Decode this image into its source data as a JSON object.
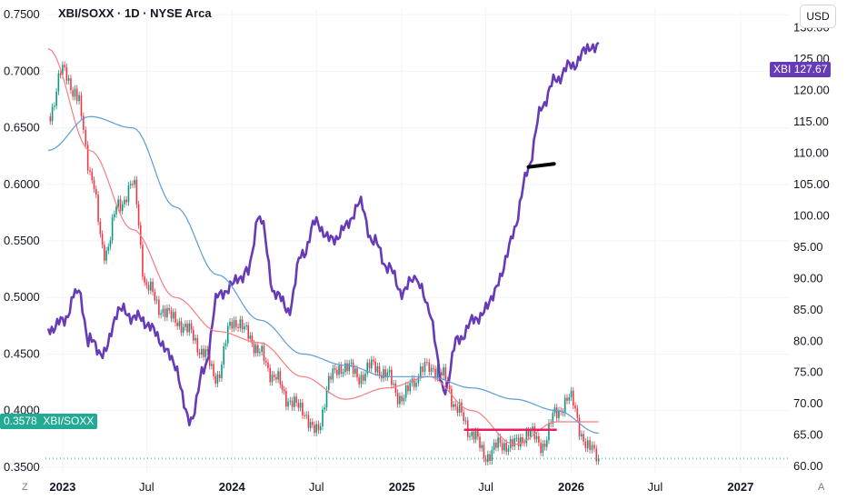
{
  "header": {
    "title": "XBI/SOXX · 1D · NYSE Arca",
    "currency_button": "USD"
  },
  "badges": {
    "ratio_value": "0.3578",
    "ratio_symbol": "XBI/SOXX",
    "xbi_symbol": "XBI",
    "xbi_value": "127.67"
  },
  "corner_marks": {
    "left": "Z",
    "right": "A"
  },
  "colors": {
    "xbi_line": "#673ab7",
    "candle_up": "#089981",
    "candle_down": "#f23645",
    "ma_fast": "#f77c80",
    "ma_slow": "#5b9cd6",
    "ratio_line": "#22ab94",
    "support_line": "#e91e63",
    "trend_mark": "#000000"
  },
  "chart_data": {
    "type": "line",
    "left_axis": {
      "ticks": [
        0.75,
        0.7,
        0.65,
        0.6,
        0.55,
        0.5,
        0.45,
        0.4,
        0.35
      ],
      "tick_labels": [
        "0.7500",
        "0.7000",
        "0.6500",
        "0.6000",
        "0.5500",
        "0.5000",
        "0.4500",
        "0.4000",
        "0.3500"
      ],
      "range": [
        0.345,
        0.755
      ]
    },
    "right_axis": {
      "ticks": [
        130,
        125,
        120,
        115,
        110,
        105,
        100,
        95,
        90,
        85,
        80,
        75,
        70,
        65,
        60
      ],
      "tick_labels": [
        "130.00",
        "125.00",
        "120.00",
        "115.00",
        "110.00",
        "105.00",
        "100.00",
        "95.00",
        "90.00",
        "85.00",
        "80.00",
        "75.00",
        "70.00",
        "65.00",
        "60.00"
      ],
      "range": [
        59,
        133
      ]
    },
    "x_axis": {
      "range": [
        "2022-11-25",
        "2027-04-15"
      ],
      "ticks": [
        {
          "date": "2023-01-01",
          "label": "2023",
          "major": true
        },
        {
          "date": "2023-07-01",
          "label": "Jul",
          "major": false
        },
        {
          "date": "2024-01-01",
          "label": "2024",
          "major": true
        },
        {
          "date": "2024-07-01",
          "label": "Jul",
          "major": false
        },
        {
          "date": "2025-01-01",
          "label": "2025",
          "major": true
        },
        {
          "date": "2025-07-01",
          "label": "Jul",
          "major": false
        },
        {
          "date": "2026-01-01",
          "label": "2026",
          "major": true
        },
        {
          "date": "2026-07-01",
          "label": "Jul",
          "major": false
        },
        {
          "date": "2027-01-01",
          "label": "2027",
          "major": true
        }
      ]
    },
    "series": [
      {
        "name": "XBI/SOXX",
        "axis": "left",
        "style": "candles",
        "x": [
          "2022-12-01",
          "2023-01-01",
          "2023-02-01",
          "2023-03-01",
          "2023-04-01",
          "2023-05-01",
          "2023-06-01",
          "2023-07-01",
          "2023-08-01",
          "2023-09-01",
          "2023-10-01",
          "2023-11-01",
          "2023-12-01",
          "2024-01-01",
          "2024-02-01",
          "2024-03-01",
          "2024-04-01",
          "2024-05-01",
          "2024-06-01",
          "2024-07-01",
          "2024-08-01",
          "2024-09-01",
          "2024-10-01",
          "2024-11-01",
          "2024-12-01",
          "2025-01-01",
          "2025-02-01",
          "2025-03-01",
          "2025-04-01",
          "2025-05-01",
          "2025-06-01",
          "2025-07-01",
          "2025-08-01",
          "2025-09-01",
          "2025-10-01",
          "2025-11-01",
          "2025-12-01",
          "2026-01-01",
          "2026-02-01",
          "2026-03-01"
        ],
        "y": [
          0.66,
          0.7,
          0.68,
          0.61,
          0.54,
          0.58,
          0.6,
          0.51,
          0.49,
          0.48,
          0.47,
          0.45,
          0.43,
          0.48,
          0.47,
          0.45,
          0.43,
          0.41,
          0.4,
          0.38,
          0.43,
          0.44,
          0.43,
          0.44,
          0.43,
          0.41,
          0.43,
          0.44,
          0.43,
          0.4,
          0.38,
          0.36,
          0.37,
          0.37,
          0.38,
          0.37,
          0.4,
          0.41,
          0.37,
          0.358
        ]
      },
      {
        "name": "XBI",
        "axis": "right",
        "style": "line",
        "x": [
          "2022-12-01",
          "2023-01-01",
          "2023-02-01",
          "2023-03-01",
          "2023-04-01",
          "2023-05-01",
          "2023-06-01",
          "2023-07-01",
          "2023-08-01",
          "2023-09-01",
          "2023-10-01",
          "2023-11-01",
          "2023-12-01",
          "2024-01-01",
          "2024-02-01",
          "2024-03-01",
          "2024-04-01",
          "2024-05-01",
          "2024-06-01",
          "2024-07-01",
          "2024-08-01",
          "2024-09-01",
          "2024-10-01",
          "2024-11-01",
          "2024-12-01",
          "2025-01-01",
          "2025-02-01",
          "2025-03-01",
          "2025-04-01",
          "2025-05-01",
          "2025-06-01",
          "2025-07-01",
          "2025-08-01",
          "2025-09-01",
          "2025-10-01",
          "2025-11-01",
          "2025-12-01",
          "2026-01-01",
          "2026-02-01",
          "2026-03-01"
        ],
        "y": [
          82,
          83,
          88,
          80,
          78,
          85,
          84,
          83,
          80,
          76,
          67,
          75,
          87,
          89,
          91,
          100,
          88,
          85,
          94,
          99,
          96,
          98,
          102,
          96,
          92,
          88,
          90,
          85,
          72,
          80,
          83,
          85,
          90,
          98,
          108,
          118,
          122,
          124,
          126,
          127.67
        ]
      },
      {
        "name": "",
        "axis": "left",
        "style": "line",
        "x": [
          "2022-12-01",
          "2023-03-01",
          "2023-06-01",
          "2023-09-01",
          "2023-12-01",
          "2024-03-01",
          "2024-06-01",
          "2024-09-01",
          "2024-12-01",
          "2025-03-01",
          "2025-06-01",
          "2025-09-01",
          "2025-12-01",
          "2026-03-01"
        ],
        "y": [
          0.72,
          0.63,
          0.56,
          0.5,
          0.47,
          0.46,
          0.43,
          0.41,
          0.42,
          0.43,
          0.4,
          0.37,
          0.39,
          0.39
        ]
      },
      {
        "name": "",
        "axis": "left",
        "style": "line",
        "x": [
          "2022-12-01",
          "2023-03-01",
          "2023-06-01",
          "2023-09-01",
          "2023-12-01",
          "2024-03-01",
          "2024-06-01",
          "2024-09-01",
          "2024-12-01",
          "2025-03-01",
          "2025-06-01",
          "2025-09-01",
          "2025-12-01",
          "2026-03-01"
        ],
        "y": [
          0.63,
          0.66,
          0.65,
          0.58,
          0.52,
          0.48,
          0.45,
          0.44,
          0.43,
          0.43,
          0.42,
          0.41,
          0.4,
          0.38
        ]
      }
    ],
    "annotations": [
      {
        "kind": "horizontal-segment",
        "axis": "left",
        "from": "2025-05-15",
        "to": "2025-12-01",
        "y": 0.383
      },
      {
        "kind": "drawn-segment",
        "axis": "right",
        "from": "2025-10-01",
        "to": "2025-11-25",
        "y_from": 107.8,
        "y_to": 108.3
      },
      {
        "kind": "current-price-line",
        "axis": "left",
        "y": 0.3578
      }
    ]
  }
}
